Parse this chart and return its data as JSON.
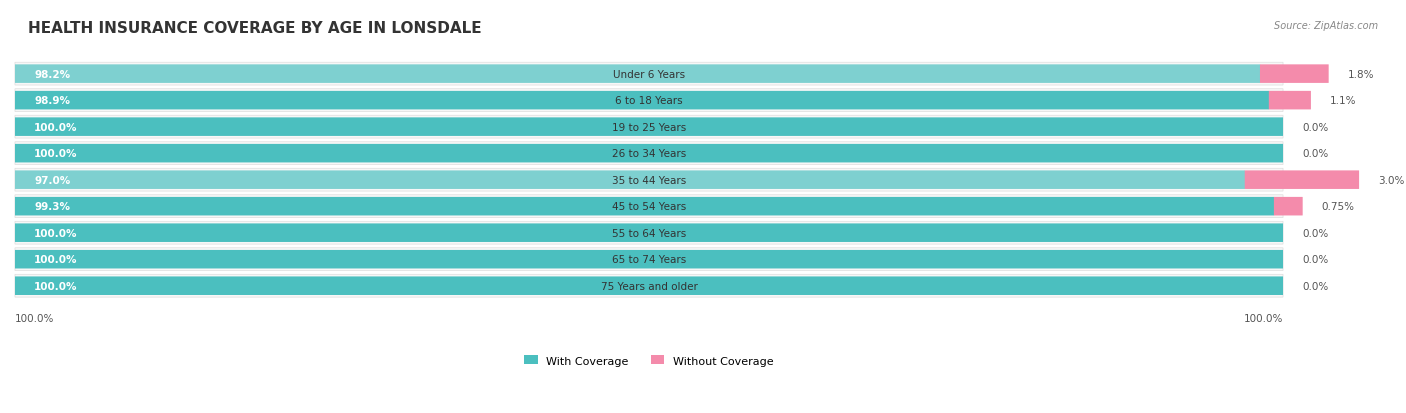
{
  "title": "HEALTH INSURANCE COVERAGE BY AGE IN LONSDALE",
  "source": "Source: ZipAtlas.com",
  "categories": [
    "Under 6 Years",
    "6 to 18 Years",
    "19 to 25 Years",
    "26 to 34 Years",
    "35 to 44 Years",
    "45 to 54 Years",
    "55 to 64 Years",
    "65 to 74 Years",
    "75 Years and older"
  ],
  "with_coverage": [
    98.2,
    98.9,
    100.0,
    100.0,
    97.0,
    99.3,
    100.0,
    100.0,
    100.0
  ],
  "without_coverage": [
    1.8,
    1.1,
    0.0,
    0.0,
    3.0,
    0.75,
    0.0,
    0.0,
    0.0
  ],
  "with_coverage_labels": [
    "98.2%",
    "98.9%",
    "100.0%",
    "100.0%",
    "97.0%",
    "99.3%",
    "100.0%",
    "100.0%",
    "100.0%"
  ],
  "without_coverage_labels": [
    "1.8%",
    "1.1%",
    "0.0%",
    "0.0%",
    "3.0%",
    "0.75%",
    "0.0%",
    "0.0%",
    "0.0%"
  ],
  "color_with": "#4BBFBF",
  "color_without": "#F48BAB",
  "color_with_light": "#A8DEDE",
  "bg_row_even": "#F2F2F2",
  "bg_row_odd": "#FFFFFF",
  "legend_with": "With Coverage",
  "legend_without": "Without Coverage",
  "total_label": "100.0%",
  "bar_max": 100
}
